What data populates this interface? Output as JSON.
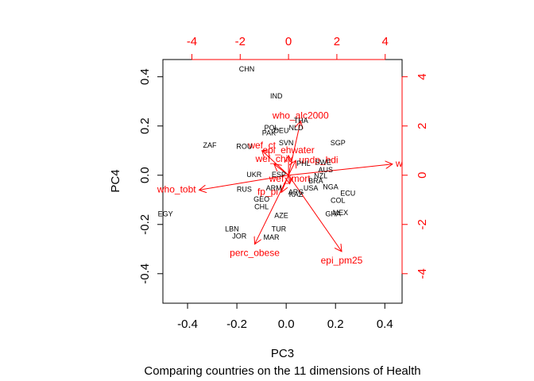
{
  "chart_data": {
    "type": "scatter",
    "subtype": "biplot",
    "title": "",
    "subtitle": "Comparing countries on the 11 dimensions of Health",
    "xlabel": "PC3",
    "ylabel": "PC4",
    "xlim": [
      -0.5,
      0.47
    ],
    "ylim": [
      -0.52,
      0.47
    ],
    "xticks": [
      -0.4,
      -0.2,
      0.0,
      0.2,
      0.4
    ],
    "yticks": [
      -0.4,
      -0.2,
      0.0,
      0.2,
      0.4
    ],
    "xtick_labels": [
      "-0.4",
      "-0.2",
      "0.0",
      "0.2",
      "0.4"
    ],
    "ytick_labels": [
      "-0.4",
      "-0.2",
      "0.0",
      "0.2",
      "0.4"
    ],
    "top_ticks": [
      -4,
      -2,
      0,
      2,
      4
    ],
    "top_tick_labels": [
      "-4",
      "-2",
      "0",
      "2",
      "4"
    ],
    "right_ticks": [
      -4,
      -2,
      0,
      2,
      4
    ],
    "right_tick_labels": [
      "-4",
      "-2",
      "0",
      "2",
      "4"
    ],
    "secondary_lim": [
      -5.2,
      4.7
    ],
    "grid": false,
    "legend": "none",
    "point_color": "#000000",
    "loading_color": "#ff0000",
    "points": [
      {
        "label": "CHN",
        "x": -0.16,
        "y": 0.43
      },
      {
        "label": "IND",
        "x": -0.04,
        "y": 0.32
      },
      {
        "label": "THA",
        "x": 0.06,
        "y": 0.22
      },
      {
        "label": "NLD",
        "x": 0.04,
        "y": 0.19
      },
      {
        "label": "DEU",
        "x": -0.02,
        "y": 0.18
      },
      {
        "label": "POL",
        "x": -0.06,
        "y": 0.19
      },
      {
        "label": "PAK",
        "x": -0.07,
        "y": 0.17
      },
      {
        "label": "SGP",
        "x": 0.21,
        "y": 0.13
      },
      {
        "label": "SVN",
        "x": 0.0,
        "y": 0.13
      },
      {
        "label": "ZAF",
        "x": -0.31,
        "y": 0.12
      },
      {
        "label": "ROU",
        "x": -0.17,
        "y": 0.115
      },
      {
        "label": "SWE",
        "x": 0.15,
        "y": 0.05
      },
      {
        "label": "PHL",
        "x": 0.07,
        "y": 0.045
      },
      {
        "label": "AUS",
        "x": 0.16,
        "y": 0.02
      },
      {
        "label": "UKR",
        "x": -0.13,
        "y": 0.0
      },
      {
        "label": "ESP",
        "x": -0.03,
        "y": 0.0
      },
      {
        "label": "NZL",
        "x": 0.14,
        "y": -0.005
      },
      {
        "label": "BRA",
        "x": 0.12,
        "y": -0.025
      },
      {
        "label": "NGA",
        "x": 0.18,
        "y": -0.05
      },
      {
        "label": "USA",
        "x": 0.1,
        "y": -0.055
      },
      {
        "label": "ARM",
        "x": -0.05,
        "y": -0.055
      },
      {
        "label": "ARG",
        "x": 0.04,
        "y": -0.07
      },
      {
        "label": "RUS",
        "x": -0.17,
        "y": -0.06
      },
      {
        "label": "ECU",
        "x": 0.25,
        "y": -0.075
      },
      {
        "label": "GEO",
        "x": -0.1,
        "y": -0.1
      },
      {
        "label": "KAZ",
        "x": 0.04,
        "y": -0.08
      },
      {
        "label": "COL",
        "x": 0.21,
        "y": -0.105
      },
      {
        "label": "CHL",
        "x": -0.1,
        "y": -0.13
      },
      {
        "label": "AZE",
        "x": -0.02,
        "y": -0.165
      },
      {
        "label": "MEX",
        "x": 0.22,
        "y": -0.155
      },
      {
        "label": "GHA",
        "x": 0.19,
        "y": -0.16
      },
      {
        "label": "EGY",
        "x": -0.49,
        "y": -0.16
      },
      {
        "label": "LBN",
        "x": -0.22,
        "y": -0.22
      },
      {
        "label": "TUR",
        "x": -0.03,
        "y": -0.22
      },
      {
        "label": "JOR",
        "x": -0.19,
        "y": -0.25
      },
      {
        "label": "MAR",
        "x": -0.06,
        "y": -0.255
      }
    ],
    "loadings": [
      {
        "name": "w",
        "x": 4.3,
        "y": 0.45,
        "label_side": "right"
      },
      {
        "name": "who_alc2000",
        "x": 0.5,
        "y": 2.2,
        "label_side": "above"
      },
      {
        "name": "wef_ct",
        "x": -1.1,
        "y": 1.0,
        "label_side": "above"
      },
      {
        "name": "epi_ehwater",
        "x": 0.0,
        "y": 0.8,
        "label_side": "above"
      },
      {
        "name": "wef_chiv",
        "x": -0.6,
        "y": 0.45,
        "label_side": "above"
      },
      {
        "name": "undp_hdi",
        "x": 0.3,
        "y": 0.6,
        "label_side": "right"
      },
      {
        "name": "wef_imort",
        "x": 0.05,
        "y": -0.35,
        "label_side": "above"
      },
      {
        "name": "who_tobt",
        "x": -3.7,
        "y": -0.6,
        "label_side": "left"
      },
      {
        "name": "fp_pi",
        "x": -0.3,
        "y": -0.7,
        "label_side": "left"
      },
      {
        "name": "perc_obese",
        "x": -1.4,
        "y": -2.8,
        "label_side": "below"
      },
      {
        "name": "epi_pm25",
        "x": 2.2,
        "y": -3.1,
        "label_side": "below"
      }
    ]
  }
}
